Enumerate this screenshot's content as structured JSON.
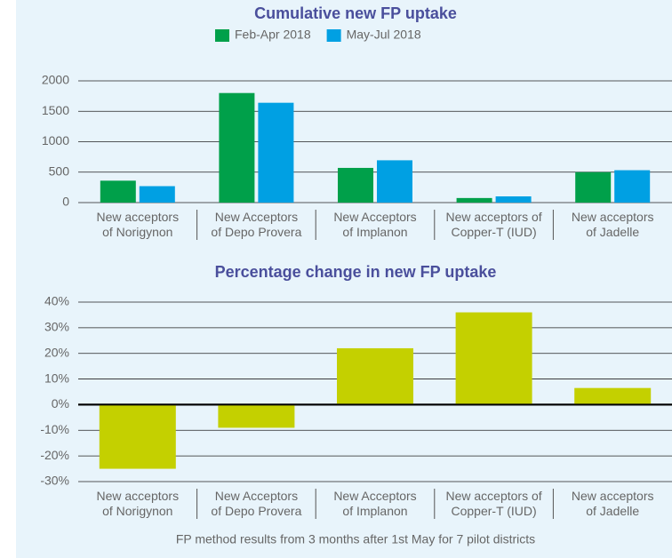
{
  "chart_data": [
    {
      "type": "bar",
      "title": "Cumulative new FP uptake",
      "categories": [
        "New acceptors\nof Norigynon",
        "New Acceptors\nof Depo Provera",
        "New Acceptors\nof Implanon",
        "New acceptors of\nCopper-T (IUD)",
        "New acceptors\nof Jadelle"
      ],
      "series": [
        {
          "name": "Feb-Apr 2018",
          "color": "#00a04a",
          "values": [
            360,
            1800,
            570,
            75,
            500
          ]
        },
        {
          "name": "May-Jul 2018",
          "color": "#00a0e3",
          "values": [
            270,
            1640,
            695,
            102,
            532
          ]
        }
      ],
      "ylim": [
        0,
        2000
      ],
      "yticks": [
        0,
        500,
        1000,
        1500,
        2000
      ],
      "grid": true,
      "legend": "top"
    },
    {
      "type": "bar",
      "title": "Percentage change in new FP uptake",
      "categories": [
        "New acceptors\nof Norigynon",
        "New Acceptors\nof Depo Provera",
        "New Acceptors\nof Implanon",
        "New acceptors of\nCopper-T (IUD)",
        "New acceptors\nof Jadelle"
      ],
      "values": [
        -25,
        -9,
        22,
        36,
        6.5
      ],
      "color": "#c4d000",
      "ylim": [
        -30,
        40
      ],
      "yticks": [
        {
          "value": -30,
          "label": "-30%"
        },
        {
          "value": -20,
          "label": "-20%"
        },
        {
          "value": -10,
          "label": "-10%"
        },
        {
          "value": 0,
          "label": "0%"
        },
        {
          "value": 10,
          "label": "10%"
        },
        {
          "value": 20,
          "label": "20%"
        },
        {
          "value": 30,
          "label": "30%"
        },
        {
          "value": 40,
          "label": "40%"
        }
      ],
      "grid": true
    }
  ],
  "footer": "FP method results from 3 months after 1st May for 7 pilot districts"
}
